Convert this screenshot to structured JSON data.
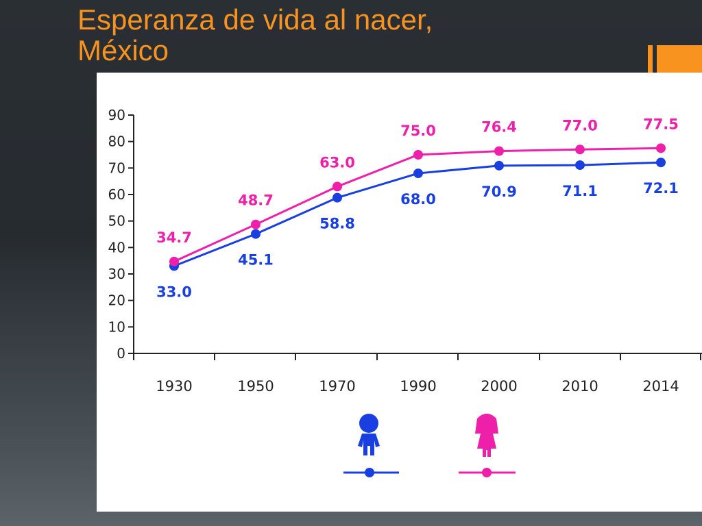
{
  "slide": {
    "title_line1": "Esperanza de vida al nacer,",
    "title_line2": "México"
  },
  "colors": {
    "hombres": "#1a3fe0",
    "mujeres": "#ee1fa8",
    "accent": "#f7931e"
  },
  "legend_icons": [
    "boy-icon",
    "girl-icon"
  ],
  "chart_data": {
    "type": "line",
    "title": "",
    "xlabel": "",
    "ylabel": "",
    "categories": [
      "1930",
      "1950",
      "1970",
      "1990",
      "2000",
      "2010",
      "2014"
    ],
    "y_ticks": [
      "0",
      "10",
      "20",
      "30",
      "40",
      "50",
      "60",
      "70",
      "80",
      "90"
    ],
    "ylim": [
      0,
      90
    ],
    "grid": false,
    "legend": "bottom",
    "series": [
      {
        "key": "hombres",
        "color": "#1a3fe0",
        "values": [
          33.0,
          45.1,
          58.8,
          68.0,
          70.9,
          71.1,
          72.1
        ],
        "labels": [
          "33.0",
          "45.1",
          "58.8",
          "68.0",
          "70.9",
          "71.1",
          "72.1"
        ]
      },
      {
        "key": "mujeres",
        "color": "#ee1fa8",
        "values": [
          34.7,
          48.7,
          63.0,
          75.0,
          76.4,
          77.0,
          77.5
        ],
        "labels": [
          "34.7",
          "48.7",
          "63.0",
          "75.0",
          "76.4",
          "77.0",
          "77.5"
        ]
      }
    ]
  }
}
